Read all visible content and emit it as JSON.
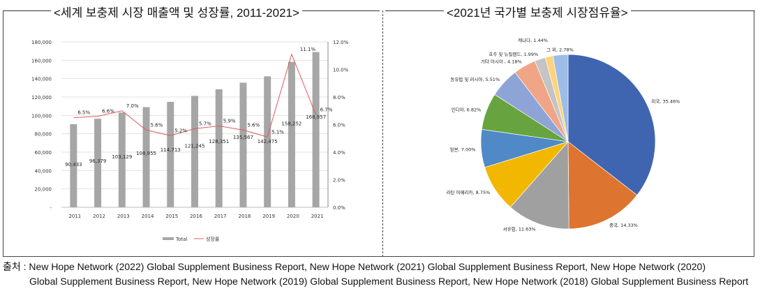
{
  "left_title": "<세계 보충제 시장 매출액 및 성장률, 2011-2021>",
  "right_title": "<2021년 국가별 보충제 시장점유율>",
  "chart_data": [
    {
      "type": "bar",
      "categories": [
        "2011",
        "2012",
        "2013",
        "2014",
        "2015",
        "2016",
        "2017",
        "2018",
        "2019",
        "2020",
        "2021"
      ],
      "series": [
        {
          "name": "Total",
          "kind": "bar",
          "axis": "left",
          "color": "#a6a6a6",
          "values": [
            90433,
            96379,
            103129,
            108955,
            114713,
            121245,
            128351,
            135567,
            142475,
            158252,
            168957
          ],
          "labels": [
            "90,433",
            "96,379",
            "103,129",
            "108,955",
            "114,713",
            "121,245",
            "128,351",
            "135,567",
            "142,475",
            "158,252",
            "168,957"
          ]
        },
        {
          "name": "성장률",
          "kind": "line",
          "axis": "right",
          "color": "#e05b5b",
          "values": [
            6.5,
            6.6,
            7.0,
            5.6,
            5.2,
            5.7,
            5.9,
            5.6,
            5.1,
            11.1,
            6.7
          ],
          "labels": [
            "6.5%",
            "6.6%",
            "7.0%",
            "5.6%",
            "5.2%",
            "5.7%",
            "5.9%",
            "5.6%",
            "5.1%",
            "11.1%",
            "6.7%"
          ]
        }
      ],
      "ylim": [
        0,
        180000
      ],
      "y_ticks": [
        "-",
        "20,000",
        "40,000",
        "60,000",
        "80,000",
        "100,000",
        "120,000",
        "140,000",
        "160,000",
        "180,000"
      ],
      "y2lim": [
        0,
        12
      ],
      "y2_ticks": [
        "0.0%",
        "2.0%",
        "4.0%",
        "6.0%",
        "8.0%",
        "10.0%",
        "12.0%"
      ],
      "grid": true,
      "legend": "bottom"
    },
    {
      "type": "pie",
      "slices": [
        {
          "label": "미국",
          "value": 35.46,
          "text": "미국, 35.46%",
          "color": "#4065b0"
        },
        {
          "label": "중국",
          "value": 14.33,
          "text": "중국, 14.33%",
          "color": "#dd7430"
        },
        {
          "label": "서유럽",
          "value": 11.63,
          "text": "서유럽, 11.63%",
          "color": "#a0a0a0"
        },
        {
          "label": "라틴 아메리카",
          "value": 8.75,
          "text": "라틴 아메리카, 8.75%",
          "color": "#f2b700"
        },
        {
          "label": "일본",
          "value": 7.0,
          "text": "일본, 7.00%",
          "color": "#5089c8"
        },
        {
          "label": "인디아",
          "value": 6.82,
          "text": "인디아, 6.82%",
          "color": "#67a33f"
        },
        {
          "label": "동유럽 및 러시아",
          "value": 5.51,
          "text": "동유럽 및 러시아, 5.51%",
          "color": "#8fa4d6"
        },
        {
          "label": "기타 아시아",
          "value": 4.18,
          "text": "기타 아시아 , 4.18%",
          "color": "#f0a587"
        },
        {
          "label": "호주 및 뉴질랜드",
          "value": 1.99,
          "text": "호주 및 뉴질랜드, 1.99%",
          "color": "#c4c4c4"
        },
        {
          "label": "캐나다",
          "value": 1.44,
          "text": "캐나다, 1.44%",
          "color": "#fdd37e"
        },
        {
          "label": "그 외",
          "value": 2.78,
          "text": "그 외, 2.78%",
          "color": "#9dbde6"
        }
      ]
    }
  ],
  "source": {
    "line1": "출처 : New Hope Network (2022) Global Supplement Business Report, New Hope Network (2021) Global Supplement Business Report, New Hope Network (2020)",
    "line2": "Global Supplement Business Report, New Hope Network (2019) Global Supplement Business Report, New Hope Network (2018) Global Supplement Business Report"
  }
}
